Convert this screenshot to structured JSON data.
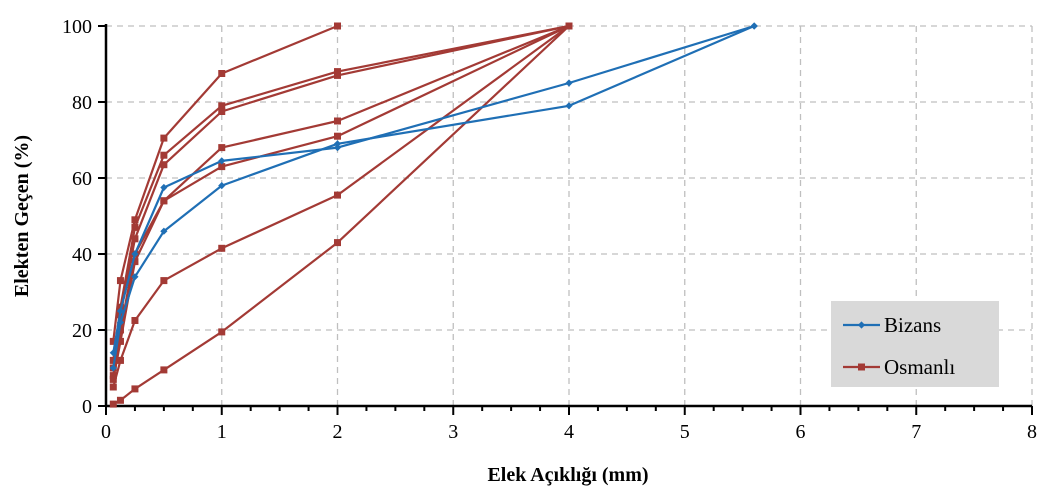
{
  "chart_data": {
    "type": "line",
    "xlabel": "Elek Açıklığı (mm)",
    "ylabel": "Elekten Geçen (%)",
    "xlim": [
      0,
      8
    ],
    "ylim": [
      0,
      100
    ],
    "x_ticks": [
      "0",
      "1",
      "2",
      "3",
      "4",
      "5",
      "6",
      "7",
      "8"
    ],
    "y_ticks": [
      "0",
      "20",
      "40",
      "60",
      "80",
      "100"
    ],
    "grid": "dashed",
    "legend_position": "bottom-right",
    "series": [
      {
        "name": "Bizans",
        "group": "Bizans",
        "color": "#1f6fb5",
        "marker": "diamond",
        "points": [
          [
            0.063,
            14
          ],
          [
            0.125,
            25
          ],
          [
            0.25,
            40
          ],
          [
            0.5,
            57.5
          ],
          [
            1,
            64.5
          ],
          [
            2,
            68
          ],
          [
            4,
            85
          ],
          [
            5.6,
            100
          ]
        ]
      },
      {
        "name": "Bizans",
        "group": "Bizans",
        "color": "#1f6fb5",
        "marker": "diamond",
        "points": [
          [
            0.063,
            10
          ],
          [
            0.125,
            22
          ],
          [
            0.25,
            34
          ],
          [
            0.5,
            46
          ],
          [
            1,
            58
          ],
          [
            2,
            69
          ],
          [
            4,
            79
          ],
          [
            5.6,
            100
          ]
        ]
      },
      {
        "name": "Osmanlı",
        "group": "Osmanlı",
        "color": "#a33a35",
        "marker": "square",
        "points": [
          [
            0.063,
            17
          ],
          [
            0.125,
            33
          ],
          [
            0.25,
            49
          ],
          [
            0.5,
            70.5
          ],
          [
            1,
            87.5
          ],
          [
            2,
            100
          ]
        ]
      },
      {
        "name": "Osmanlı",
        "group": "Osmanlı",
        "color": "#a33a35",
        "marker": "square",
        "points": [
          [
            0.063,
            12
          ],
          [
            0.125,
            26
          ],
          [
            0.25,
            47
          ],
          [
            0.5,
            66
          ],
          [
            1,
            79
          ],
          [
            2,
            88
          ],
          [
            4,
            100
          ]
        ]
      },
      {
        "name": "Osmanlı",
        "group": "Osmanlı",
        "color": "#a33a35",
        "marker": "square",
        "points": [
          [
            0.063,
            10
          ],
          [
            0.125,
            24
          ],
          [
            0.25,
            44
          ],
          [
            0.5,
            63.5
          ],
          [
            1,
            77.5
          ],
          [
            2,
            87
          ],
          [
            4,
            100
          ]
        ]
      },
      {
        "name": "Osmanlı",
        "group": "Osmanlı",
        "color": "#a33a35",
        "marker": "square",
        "points": [
          [
            0.063,
            8
          ],
          [
            0.125,
            20
          ],
          [
            0.25,
            40
          ],
          [
            0.5,
            54
          ],
          [
            1,
            68
          ],
          [
            2,
            75
          ],
          [
            4,
            100
          ]
        ]
      },
      {
        "name": "Osmanlı",
        "group": "Osmanlı",
        "color": "#a33a35",
        "marker": "square",
        "points": [
          [
            0.063,
            7
          ],
          [
            0.125,
            17
          ],
          [
            0.25,
            38
          ],
          [
            0.5,
            54
          ],
          [
            1,
            63
          ],
          [
            2,
            71
          ],
          [
            4,
            100
          ]
        ]
      },
      {
        "name": "Osmanlı",
        "group": "Osmanlı",
        "color": "#a33a35",
        "marker": "square",
        "points": [
          [
            0.063,
            5
          ],
          [
            0.125,
            12
          ],
          [
            0.25,
            22.5
          ],
          [
            0.5,
            33
          ],
          [
            1,
            41.5
          ],
          [
            2,
            55.5
          ],
          [
            4,
            100
          ]
        ]
      },
      {
        "name": "Osmanlı",
        "group": "Osmanlı",
        "color": "#a33a35",
        "marker": "square",
        "points": [
          [
            0.063,
            0.5
          ],
          [
            0.125,
            1.5
          ],
          [
            0.25,
            4.5
          ],
          [
            0.5,
            9.5
          ],
          [
            1,
            19.5
          ],
          [
            2,
            43
          ],
          [
            4,
            100
          ]
        ]
      }
    ],
    "legend": [
      {
        "label": "Bizans",
        "color": "#1f6fb5",
        "marker": "diamond"
      },
      {
        "label": "Osmanlı",
        "color": "#a33a35",
        "marker": "square"
      }
    ]
  }
}
